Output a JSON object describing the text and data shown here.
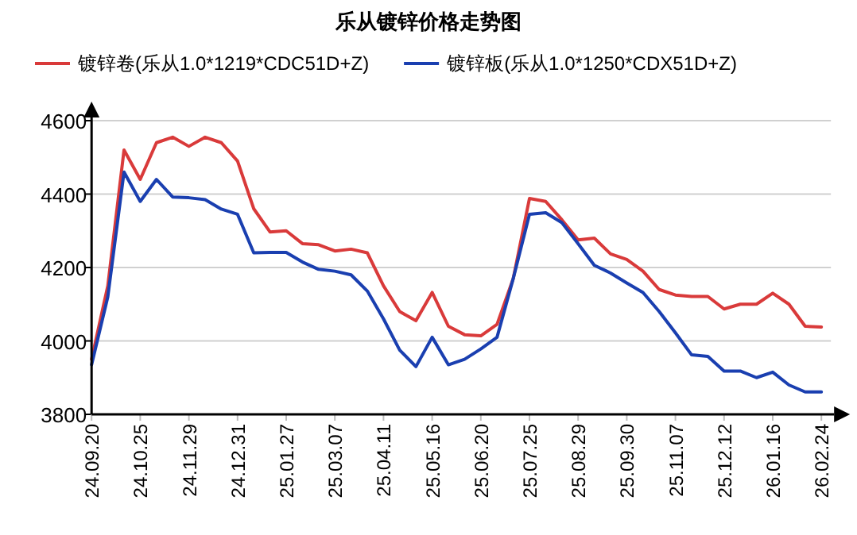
{
  "chart_data": {
    "type": "line",
    "title": "乐从镀锌价格走势图",
    "categories": [
      "24.09.20",
      null,
      null,
      "24.10.25",
      null,
      null,
      "24.11.29",
      null,
      null,
      "24.12.31",
      null,
      null,
      "25.01.27",
      null,
      null,
      "25.03.07",
      null,
      null,
      "25.04.11",
      null,
      null,
      "25.05.16",
      null,
      null,
      "25.06.20",
      null,
      null,
      "25.07.25",
      null,
      null,
      "25.08.29",
      null,
      null,
      "25.09.30",
      null,
      null,
      "25.11.07",
      null,
      null,
      "25.12.12",
      null,
      null,
      "26.01.16",
      null,
      null,
      "26.02.24"
    ],
    "series": [
      {
        "name": "镀锌卷(乐从1.0*1219*CDC51D+Z)",
        "color": "#d93a3a",
        "values": [
          3950,
          4150,
          4520,
          4440,
          4540,
          4555,
          4530,
          4555,
          4540,
          4490,
          4360,
          4297,
          4300,
          4265,
          4262,
          4245,
          4250,
          4240,
          4150,
          4080,
          4055,
          4132,
          4040,
          4017,
          4014,
          4045,
          4170,
          4388,
          4380,
          4330,
          4275,
          4280,
          4237,
          4222,
          4190,
          4140,
          4125,
          4121,
          4121,
          4087,
          4100,
          4100,
          4130,
          4100,
          4040,
          4038
        ]
      },
      {
        "name": "镀锌板(乐从1.0*1250*CDX51D+Z)",
        "color": "#1a3fb0",
        "values": [
          3935,
          4120,
          4460,
          4380,
          4440,
          4392,
          4390,
          4385,
          4359,
          4345,
          4240,
          4241,
          4241,
          4215,
          4195,
          4190,
          4180,
          4136,
          4060,
          3975,
          3930,
          4010,
          3935,
          3950,
          3978,
          4010,
          4170,
          4345,
          4349,
          4322,
          4265,
          4206,
          4185,
          4158,
          4132,
          4080,
          4022,
          3962,
          3958,
          3918,
          3918,
          3900,
          3915,
          3880,
          3861,
          3861
        ]
      }
    ],
    "ylim": [
      3800,
      4600
    ],
    "yticks": [
      3800,
      4000,
      4200,
      4400,
      4600
    ],
    "grid": "y",
    "legend": "top",
    "marker": "none",
    "line_style": "solid"
  }
}
